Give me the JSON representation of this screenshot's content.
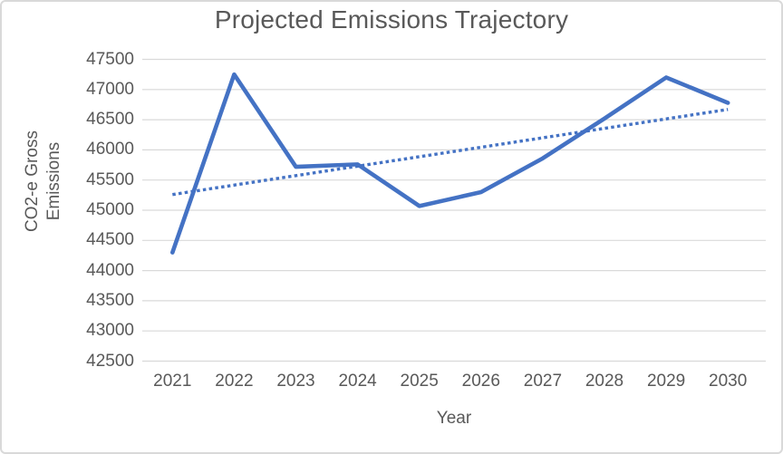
{
  "chart_data": {
    "type": "line",
    "title": "Projected Emissions Trajectory",
    "xlabel": "Year",
    "ylabel": "CO2-e Gross Emissions",
    "ylabel_lines": [
      "CO2-e Gross",
      "Emissions"
    ],
    "categories": [
      "2021",
      "2022",
      "2023",
      "2024",
      "2025",
      "2026",
      "2027",
      "2028",
      "2029",
      "2030"
    ],
    "series": [
      {
        "name": "CO2-e Gross Emissions",
        "color": "#4472C4",
        "style": "solid",
        "values": [
          44300,
          47250,
          45720,
          45760,
          45070,
          45300,
          45860,
          46520,
          47200,
          46780
        ]
      }
    ],
    "trendline": {
      "type": "linear",
      "style": "dotted",
      "color": "#4472C4",
      "start": 45260,
      "end": 46670
    },
    "ylim": [
      42500,
      47500
    ],
    "ytick_step": 500,
    "yticks": [
      "47500",
      "47000",
      "46500",
      "46000",
      "45500",
      "45000",
      "44500",
      "44000",
      "43500",
      "43000",
      "42500"
    ],
    "grid": true,
    "legend": "none",
    "colors": {
      "grid": "#D9D9D9",
      "text": "#595959",
      "border": "#D9D9D9",
      "background": "#FFFFFF"
    }
  }
}
